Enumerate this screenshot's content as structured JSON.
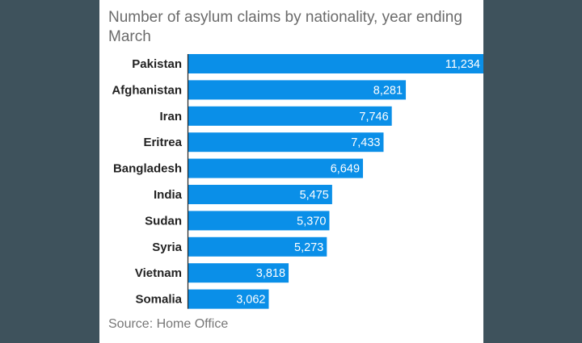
{
  "chart_data": {
    "type": "bar",
    "orientation": "horizontal",
    "title": "Number of asylum claims by nationality, year ending March",
    "source": "Source: Home Office",
    "categories": [
      "Pakistan",
      "Afghanistan",
      "Iran",
      "Eritrea",
      "Bangladesh",
      "India",
      "Sudan",
      "Syria",
      "Vietnam",
      "Somalia"
    ],
    "values": [
      11234,
      8281,
      7746,
      7433,
      6649,
      5475,
      5370,
      5273,
      3818,
      3062
    ],
    "value_labels": [
      "11,234",
      "8,281",
      "7,746",
      "7,433",
      "6,649",
      "5,475",
      "5,370",
      "5,273",
      "3,818",
      "3,062"
    ],
    "xlabel": "",
    "ylabel": "",
    "xlim": [
      0,
      11234
    ],
    "grid": false,
    "legend": "none",
    "bar_color": "#0a8fe8"
  },
  "colors": {
    "background": "#3e525c",
    "card": "#ffffff",
    "bar": "#0a8fe8",
    "axis": "#222222",
    "title": "#6b6b6b",
    "source": "#777777"
  }
}
